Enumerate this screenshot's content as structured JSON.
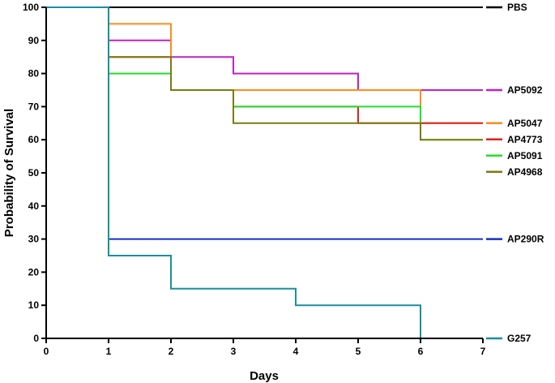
{
  "chart_data": {
    "type": "line",
    "step": true,
    "xlabel": "Days",
    "ylabel": "Probability of Survival",
    "xlim": [
      0,
      7
    ],
    "ylim": [
      0,
      100
    ],
    "xticks": [
      "0",
      "1",
      "2",
      "3",
      "4",
      "5",
      "6",
      "7"
    ],
    "yticks": [
      "0",
      "10",
      "20",
      "30",
      "40",
      "50",
      "60",
      "70",
      "80",
      "90",
      "100"
    ],
    "grid": false,
    "legend_placement": "right",
    "series": [
      {
        "name": "PBS",
        "color": "#000000",
        "x": [
          0,
          7
        ],
        "y": [
          100,
          100
        ]
      },
      {
        "name": "AP5092",
        "color": "#c020c8",
        "x": [
          0,
          1,
          2,
          3,
          5,
          7
        ],
        "y": [
          100,
          90,
          85,
          80,
          75,
          75
        ]
      },
      {
        "name": "AP5047",
        "color": "#ff8c1a",
        "x": [
          0,
          1,
          2,
          5,
          6,
          7
        ],
        "y": [
          100,
          95,
          75,
          75,
          65,
          65
        ]
      },
      {
        "name": "AP4773",
        "color": "#e0201c",
        "x": [
          0,
          1,
          2,
          3,
          5,
          7
        ],
        "y": [
          100,
          85,
          75,
          70,
          65,
          65
        ]
      },
      {
        "name": "AP5091",
        "color": "#22e02a",
        "x": [
          0,
          1,
          2,
          3,
          5,
          6,
          7
        ],
        "y": [
          100,
          80,
          75,
          70,
          70,
          60,
          60
        ]
      },
      {
        "name": "AP4968",
        "color": "#7c7a10",
        "x": [
          0,
          1,
          2,
          3,
          6,
          7
        ],
        "y": [
          100,
          85,
          75,
          65,
          60,
          60
        ]
      },
      {
        "name": "AP290R",
        "color": "#1530c8",
        "x": [
          0,
          1,
          7
        ],
        "y": [
          100,
          30,
          30
        ]
      },
      {
        "name": "G257",
        "color": "#1a8fa0",
        "x": [
          0,
          1,
          2,
          4,
          6
        ],
        "y": [
          100,
          25,
          15,
          10,
          0
        ]
      }
    ]
  }
}
